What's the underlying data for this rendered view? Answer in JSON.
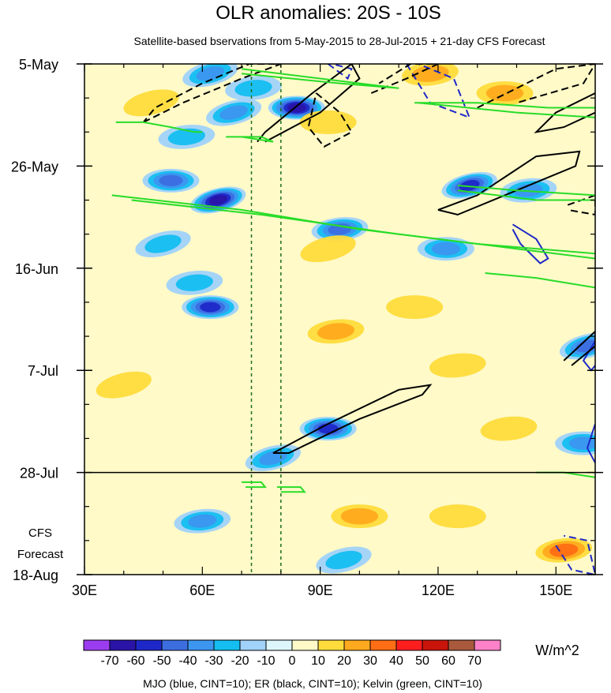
{
  "chart_data": {
    "type": "heatmap",
    "title": "OLR anomalies: 20S - 10S",
    "subtitle": "Satellite-based bservations from 5-May-2015 to 28-Jul-2015 + 21-day CFS Forecast",
    "x_axis": {
      "range": [
        30,
        160
      ],
      "ticks": [
        {
          "value": 30,
          "label": "30E"
        },
        {
          "value": 60,
          "label": "60E"
        },
        {
          "value": 90,
          "label": "90E"
        },
        {
          "value": 120,
          "label": "120E"
        },
        {
          "value": 150,
          "label": "150E"
        }
      ],
      "minor_step": 10
    },
    "y_axis": {
      "range_days": [
        0,
        105
      ],
      "ticks": [
        {
          "day": 0,
          "label": "5-May"
        },
        {
          "day": 21,
          "label": "26-May"
        },
        {
          "day": 42,
          "label": "16-Jun"
        },
        {
          "day": 63,
          "label": "7-Jul"
        },
        {
          "day": 84,
          "label": "28-Jul"
        },
        {
          "day": 105,
          "label": "18-Aug"
        }
      ],
      "minor_step_days": 7
    },
    "forecast_start_day": 84,
    "forecast_label": [
      "CFS",
      "Forecast"
    ],
    "reference_lines_lon": [
      72.5,
      80
    ],
    "colorbar": {
      "levels": [
        -70,
        -60,
        -50,
        -40,
        -30,
        -20,
        -10,
        0,
        10,
        20,
        30,
        40,
        50,
        60,
        70
      ],
      "labels": [
        "-70",
        "-60",
        "-50",
        "-40",
        "-30",
        "-20",
        "-10",
        "0",
        "10",
        "20",
        "30",
        "40",
        "50",
        "60",
        "70"
      ],
      "colors": [
        "#9c3cf0",
        "#2a14a8",
        "#1e28c8",
        "#3c6ee0",
        "#3c96f0",
        "#14bef0",
        "#a0d2fa",
        "#dcf6fc",
        "#fffac8",
        "#ffdc3c",
        "#ffaa1e",
        "#ff6e14",
        "#ff1e1e",
        "#c8140a",
        "#aa5a3c",
        "#ff82c8"
      ],
      "units": "W/m^2"
    },
    "note": "MJO (blue, CINT=10); ER (black, CINT=10); Kelvin (green, CINT=10)",
    "anomaly_features": [
      {
        "lon": 62,
        "day": 2,
        "value": -30
      },
      {
        "lon": 73,
        "day": 5,
        "value": -25
      },
      {
        "lon": 84,
        "day": 9,
        "value": -60
      },
      {
        "lon": 68,
        "day": 10,
        "value": -35
      },
      {
        "lon": 118,
        "day": 2,
        "value": 25
      },
      {
        "lon": 137,
        "day": 6,
        "value": 20
      },
      {
        "lon": 47,
        "day": 8,
        "value": 15
      },
      {
        "lon": 56,
        "day": 15,
        "value": -20
      },
      {
        "lon": 92,
        "day": 12,
        "value": 15
      },
      {
        "lon": 128,
        "day": 25,
        "value": -50
      },
      {
        "lon": 143,
        "day": 26,
        "value": -30
      },
      {
        "lon": 52,
        "day": 24,
        "value": -45
      },
      {
        "lon": 64,
        "day": 28,
        "value": -60
      },
      {
        "lon": 95,
        "day": 34,
        "value": -40
      },
      {
        "lon": 122,
        "day": 38,
        "value": -30
      },
      {
        "lon": 50,
        "day": 37,
        "value": -25
      },
      {
        "lon": 58,
        "day": 45,
        "value": -20
      },
      {
        "lon": 62,
        "day": 50,
        "value": -50
      },
      {
        "lon": 92,
        "day": 38,
        "value": 15
      },
      {
        "lon": 94,
        "day": 55,
        "value": 20
      },
      {
        "lon": 114,
        "day": 50,
        "value": 15
      },
      {
        "lon": 158,
        "day": 58,
        "value": -40
      },
      {
        "lon": 125,
        "day": 62,
        "value": 15
      },
      {
        "lon": 92,
        "day": 75,
        "value": -55
      },
      {
        "lon": 78,
        "day": 81,
        "value": -30
      },
      {
        "lon": 138,
        "day": 75,
        "value": 15
      },
      {
        "lon": 157,
        "day": 78,
        "value": -30
      },
      {
        "lon": 40,
        "day": 66,
        "value": 10
      },
      {
        "lon": 60,
        "day": 94,
        "value": -35
      },
      {
        "lon": 100,
        "day": 93,
        "value": 20
      },
      {
        "lon": 96,
        "day": 102,
        "value": -25
      },
      {
        "lon": 152,
        "day": 100,
        "value": 30
      },
      {
        "lon": 125,
        "day": 93,
        "value": 10
      }
    ],
    "contours": [
      {
        "family": "MJO",
        "color": "#1e28c8",
        "style": "dashed",
        "points": [
          [
            112,
            0
          ],
          [
            118,
            8
          ],
          [
            128,
            11
          ],
          [
            124,
            3
          ],
          [
            115,
            0
          ]
        ]
      },
      {
        "family": "MJO",
        "color": "#1e28c8",
        "style": "dashed",
        "points": [
          [
            92,
            0
          ],
          [
            97,
            3
          ],
          [
            98,
            1
          ],
          [
            93,
            0
          ]
        ]
      },
      {
        "family": "MJO",
        "color": "#1e28c8",
        "style": "solid",
        "points": [
          [
            139,
            33
          ],
          [
            145,
            36
          ],
          [
            148,
            40
          ],
          [
            146,
            41
          ],
          [
            141,
            37
          ],
          [
            139,
            34
          ]
        ]
      },
      {
        "family": "MJO",
        "color": "#1e28c8",
        "style": "solid",
        "points": [
          [
            160,
            57
          ],
          [
            157,
            61
          ],
          [
            159,
            63
          ],
          [
            160,
            62
          ]
        ]
      },
      {
        "family": "MJO",
        "color": "#1e28c8",
        "style": "solid",
        "points": [
          [
            160,
            74
          ],
          [
            158,
            79
          ],
          [
            160,
            82
          ]
        ]
      },
      {
        "family": "MJO",
        "color": "#1e28c8",
        "style": "dashed",
        "points": [
          [
            150,
            99
          ],
          [
            154,
            104
          ],
          [
            160,
            105
          ],
          [
            158,
            98
          ],
          [
            152,
            97
          ]
        ]
      },
      {
        "family": "ER",
        "color": "#000000",
        "style": "dashed",
        "points": [
          [
            45,
            12
          ],
          [
            55,
            8
          ],
          [
            70,
            3
          ],
          [
            80,
            0
          ],
          [
            72,
            0
          ],
          [
            60,
            4
          ],
          [
            48,
            9
          ],
          [
            45,
            12
          ]
        ]
      },
      {
        "family": "ER",
        "color": "#000000",
        "style": "dashed",
        "points": [
          [
            89,
            6
          ],
          [
            95,
            10
          ],
          [
            98,
            14
          ],
          [
            91,
            17
          ],
          [
            87,
            13
          ],
          [
            89,
            6
          ]
        ]
      },
      {
        "family": "ER",
        "color": "#000000",
        "style": "dashed",
        "points": [
          [
            103,
            6
          ],
          [
            112,
            3
          ],
          [
            120,
            0
          ],
          [
            113,
            0
          ],
          [
            105,
            4
          ]
        ]
      },
      {
        "family": "ER",
        "color": "#000000",
        "style": "dashed",
        "points": [
          [
            130,
            9
          ],
          [
            140,
            5
          ],
          [
            150,
            1
          ],
          [
            160,
            0
          ],
          [
            157,
            4
          ],
          [
            140,
            8
          ]
        ]
      },
      {
        "family": "ER",
        "color": "#000000",
        "style": "solid",
        "points": [
          [
            76,
            16
          ],
          [
            90,
            10
          ],
          [
            100,
            3
          ],
          [
            98,
            0
          ],
          [
            88,
            6
          ],
          [
            76,
            14
          ],
          [
            74,
            16
          ]
        ]
      },
      {
        "family": "ER",
        "color": "#000000",
        "style": "solid",
        "points": [
          [
            160,
            6
          ],
          [
            150,
            10
          ],
          [
            145,
            14
          ],
          [
            152,
            13
          ],
          [
            160,
            10
          ]
        ]
      },
      {
        "family": "ER",
        "color": "#000000",
        "style": "solid",
        "points": [
          [
            120,
            30
          ],
          [
            130,
            27
          ],
          [
            145,
            19
          ],
          [
            156,
            18
          ],
          [
            155,
            21
          ],
          [
            140,
            26
          ],
          [
            125,
            31
          ],
          [
            120,
            30
          ]
        ]
      },
      {
        "family": "ER",
        "color": "#000000",
        "style": "dashed",
        "points": [
          [
            153,
            29
          ],
          [
            160,
            27
          ],
          [
            160,
            31
          ],
          [
            153,
            30
          ]
        ]
      },
      {
        "family": "ER",
        "color": "#000000",
        "style": "solid",
        "points": [
          [
            78,
            80
          ],
          [
            92,
            74
          ],
          [
            110,
            67
          ],
          [
            118,
            66
          ],
          [
            116,
            68
          ],
          [
            100,
            73
          ],
          [
            82,
            80
          ],
          [
            78,
            80
          ]
        ]
      },
      {
        "family": "ER",
        "color": "#000000",
        "style": "solid",
        "points": [
          [
            152,
            61
          ],
          [
            160,
            55
          ],
          [
            160,
            58
          ],
          [
            154,
            62
          ]
        ]
      },
      {
        "family": "Kelvin",
        "color": "#28dc28",
        "style": "solid",
        "points": [
          [
            70,
            1
          ],
          [
            90,
            3
          ],
          [
            110,
            5
          ],
          [
            95,
            4
          ],
          [
            70,
            2
          ]
        ]
      },
      {
        "family": "Kelvin",
        "color": "#28dc28",
        "style": "solid",
        "points": [
          [
            38,
            12
          ],
          [
            45,
            12
          ],
          [
            52,
            13
          ],
          [
            58,
            14
          ],
          [
            60,
            14
          ]
        ]
      },
      {
        "family": "Kelvin",
        "color": "#28dc28",
        "style": "solid",
        "points": [
          [
            66,
            15
          ],
          [
            75,
            15
          ],
          [
            78,
            16
          ],
          [
            70,
            15
          ]
        ]
      },
      {
        "family": "Kelvin",
        "color": "#28dc28",
        "style": "solid",
        "points": [
          [
            114,
            8
          ],
          [
            130,
            8
          ],
          [
            148,
            9
          ],
          [
            160,
            9
          ]
        ]
      },
      {
        "family": "Kelvin",
        "color": "#28dc28",
        "style": "solid",
        "points": [
          [
            115,
            8
          ],
          [
            140,
            10
          ],
          [
            160,
            11
          ]
        ]
      },
      {
        "family": "Kelvin",
        "color": "#28dc28",
        "style": "solid",
        "points": [
          [
            37,
            27
          ],
          [
            70,
            30
          ],
          [
            100,
            34
          ],
          [
            130,
            37
          ],
          [
            160,
            39
          ]
        ]
      },
      {
        "family": "Kelvin",
        "color": "#28dc28",
        "style": "solid",
        "points": [
          [
            42,
            28
          ],
          [
            75,
            31
          ],
          [
            110,
            35
          ],
          [
            140,
            38
          ],
          [
            160,
            40
          ]
        ]
      },
      {
        "family": "Kelvin",
        "color": "#28dc28",
        "style": "solid",
        "points": [
          [
            125,
            25
          ],
          [
            140,
            26
          ],
          [
            160,
            27
          ]
        ]
      },
      {
        "family": "Kelvin",
        "color": "#28dc28",
        "style": "solid",
        "points": [
          [
            125,
            26
          ],
          [
            145,
            28
          ],
          [
            160,
            28
          ]
        ]
      },
      {
        "family": "Kelvin",
        "color": "#28dc28",
        "style": "solid",
        "points": [
          [
            132,
            43
          ],
          [
            145,
            44
          ],
          [
            160,
            46
          ]
        ]
      },
      {
        "family": "Kelvin",
        "color": "#28dc28",
        "style": "solid",
        "points": [
          [
            70,
            86
          ],
          [
            75,
            86
          ],
          [
            76,
            87
          ],
          [
            71,
            87
          ]
        ]
      },
      {
        "family": "Kelvin",
        "color": "#28dc28",
        "style": "solid",
        "points": [
          [
            79,
            87
          ],
          [
            85,
            87
          ],
          [
            86,
            88
          ],
          [
            80,
            88
          ]
        ]
      },
      {
        "family": "Kelvin",
        "color": "#28dc28",
        "style": "solid",
        "points": [
          [
            145,
            84
          ],
          [
            152,
            84
          ],
          [
            160,
            85
          ]
        ]
      }
    ]
  }
}
